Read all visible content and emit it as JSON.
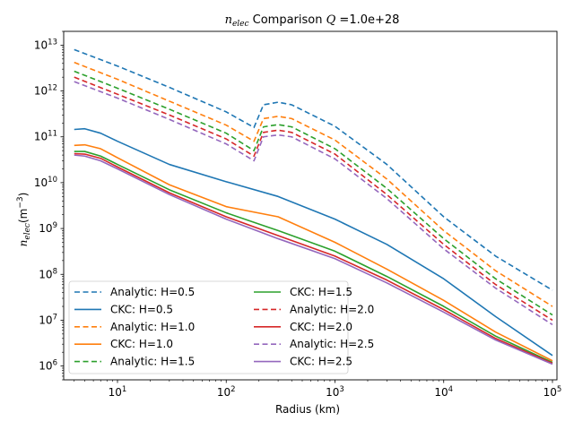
{
  "chart_data": {
    "type": "line",
    "title_prefix": "n",
    "title_sub": "elec",
    "title_mid": " Comparison ",
    "title_q": "Q",
    "title_value": " =1.0e+28",
    "xlabel": "Radius (km)",
    "ylabel_n": "n",
    "ylabel_sub": "elec",
    "ylabel_unit": "(m",
    "ylabel_exp": "−3",
    "ylabel_close": ")",
    "xscale": "log",
    "yscale": "log",
    "xlim": [
      3.2,
      110000
    ],
    "ylim": [
      500000,
      20000000000000
    ],
    "xticks": [
      {
        "value": 10,
        "base": "10",
        "exp": "1"
      },
      {
        "value": 100,
        "base": "10",
        "exp": "2"
      },
      {
        "value": 1000,
        "base": "10",
        "exp": "3"
      },
      {
        "value": 10000,
        "base": "10",
        "exp": "4"
      },
      {
        "value": 100000,
        "base": "10",
        "exp": "5"
      }
    ],
    "yticks": [
      {
        "value": 1000000,
        "base": "10",
        "exp": "6"
      },
      {
        "value": 10000000,
        "base": "10",
        "exp": "7"
      },
      {
        "value": 100000000,
        "base": "10",
        "exp": "8"
      },
      {
        "value": 1000000000,
        "base": "10",
        "exp": "9"
      },
      {
        "value": 10000000000,
        "base": "10",
        "exp": "10"
      },
      {
        "value": 100000000000,
        "base": "10",
        "exp": "11"
      },
      {
        "value": 1000000000000,
        "base": "10",
        "exp": "12"
      },
      {
        "value": 10000000000000,
        "base": "10",
        "exp": "13"
      }
    ],
    "grid": false,
    "legend_position": "lower-left",
    "legend_columns": 2,
    "series": [
      {
        "name": "Analytic:  H=0.5",
        "style": "dashed",
        "color": "#1f77b4",
        "x": [
          4,
          10,
          30,
          100,
          180,
          220,
          300,
          400,
          1000,
          3000,
          10000,
          30000,
          100000
        ],
        "y": [
          8000000000000.0,
          3500000000000.0,
          1200000000000.0,
          350000000000.0,
          160000000000.0,
          500000000000.0,
          570000000000.0,
          500000000000.0,
          170000000000.0,
          25000000000.0,
          1800000000.0,
          250000000.0,
          45000000.0
        ]
      },
      {
        "name": "CKC: H=0.5",
        "style": "solid",
        "color": "#1f77b4",
        "x": [
          4,
          5,
          7,
          10,
          30,
          100,
          300,
          1000,
          3000,
          10000,
          30000,
          100000
        ],
        "y": [
          145000000000.0,
          150000000000.0,
          120000000000.0,
          80000000000.0,
          25000000000.0,
          10500000000.0,
          5000000000.0,
          1600000000.0,
          450000000.0,
          80000000.0,
          12000000.0,
          1700000.0
        ]
      },
      {
        "name": "Analytic:  H=1.0",
        "style": "dashed",
        "color": "#ff7f0e",
        "x": [
          4,
          10,
          30,
          100,
          180,
          220,
          300,
          400,
          1000,
          3000,
          10000,
          30000,
          100000
        ],
        "y": [
          4200000000000.0,
          1800000000000.0,
          600000000000.0,
          180000000000.0,
          80000000000.0,
          250000000000.0,
          280000000000.0,
          250000000000.0,
          85000000000.0,
          12000000000.0,
          900000000.0,
          120000000.0,
          20000000.0
        ]
      },
      {
        "name": "CKC: H=1.0",
        "style": "solid",
        "color": "#ff7f0e",
        "x": [
          4,
          5,
          7,
          10,
          30,
          100,
          300,
          1000,
          3000,
          10000,
          30000,
          100000
        ],
        "y": [
          65000000000.0,
          67000000000.0,
          55000000000.0,
          35000000000.0,
          9000000000.0,
          3000000000.0,
          1800000000.0,
          500000000.0,
          130000000.0,
          27000000.0,
          5500000.0,
          1300000.0
        ]
      },
      {
        "name": "Analytic:  H=1.5",
        "style": "dashed",
        "color": "#2ca02c",
        "x": [
          4,
          10,
          30,
          100,
          180,
          220,
          300,
          400,
          1000,
          3000,
          10000,
          30000,
          100000
        ],
        "y": [
          2700000000000.0,
          1150000000000.0,
          400000000000.0,
          120000000000.0,
          50000000000.0,
          165000000000.0,
          185000000000.0,
          165000000000.0,
          55000000000.0,
          7500000000.0,
          600000000.0,
          80000000.0,
          13000000.0
        ]
      },
      {
        "name": "CKC: H=1.5",
        "style": "solid",
        "color": "#2ca02c",
        "x": [
          4,
          5,
          7,
          10,
          30,
          100,
          300,
          1000,
          3000,
          10000,
          30000,
          100000
        ],
        "y": [
          48000000000.0,
          48000000000.0,
          38000000000.0,
          25000000000.0,
          7000000000.0,
          2200000000.0,
          900000000.0,
          320000000.0,
          90000000.0,
          20000000.0,
          4500000.0,
          1200000.0
        ]
      },
      {
        "name": "Analytic:  H=2.0",
        "style": "dashed",
        "color": "#d62728",
        "x": [
          4,
          10,
          30,
          100,
          180,
          220,
          300,
          400,
          1000,
          3000,
          10000,
          30000,
          100000
        ],
        "y": [
          2000000000000.0,
          850000000000.0,
          300000000000.0,
          90000000000.0,
          38000000000.0,
          125000000000.0,
          140000000000.0,
          125000000000.0,
          42000000000.0,
          5500000000.0,
          450000000.0,
          60000000.0,
          10000000.0
        ]
      },
      {
        "name": "CKC: H=2.0",
        "style": "solid",
        "color": "#d62728",
        "x": [
          4,
          5,
          7,
          10,
          30,
          100,
          300,
          1000,
          3000,
          10000,
          30000,
          100000
        ],
        "y": [
          43000000000.0,
          42000000000.0,
          34000000000.0,
          22000000000.0,
          6000000000.0,
          1800000000.0,
          700000000.0,
          250000000.0,
          75000000.0,
          17000000.0,
          4000000.0,
          1150000.0
        ]
      },
      {
        "name": "Analytic:  H=2.5",
        "style": "dashed",
        "color": "#9467bd",
        "x": [
          4,
          10,
          30,
          100,
          180,
          220,
          300,
          400,
          1000,
          3000,
          10000,
          30000,
          100000
        ],
        "y": [
          1600000000000.0,
          700000000000.0,
          240000000000.0,
          70000000000.0,
          30000000000.0,
          100000000000.0,
          110000000000.0,
          100000000000.0,
          33000000000.0,
          4500000000.0,
          360000000.0,
          50000000.0,
          8000000.0
        ]
      },
      {
        "name": "CKC: H=2.5",
        "style": "solid",
        "color": "#9467bd",
        "x": [
          4,
          5,
          7,
          10,
          30,
          100,
          300,
          1000,
          3000,
          10000,
          30000,
          100000
        ],
        "y": [
          40000000000.0,
          38000000000.0,
          30000000000.0,
          20000000000.0,
          5500000000.0,
          1600000000.0,
          600000000.0,
          220000000.0,
          65000000.0,
          15000000.0,
          3700000.0,
          1100000.0
        ]
      }
    ]
  }
}
